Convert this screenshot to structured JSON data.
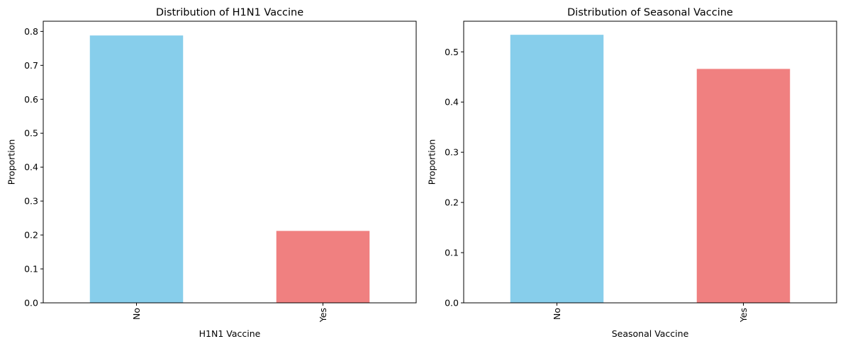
{
  "chart_data": [
    {
      "type": "bar",
      "title": "Distribution of H1N1 Vaccine",
      "xlabel": "H1N1 Vaccine",
      "ylabel": "Proportion",
      "categories": [
        "No",
        "Yes"
      ],
      "values": [
        0.788,
        0.212
      ],
      "colors": [
        "#87CEEB",
        "#F08080"
      ],
      "ylim": [
        0,
        0.83
      ],
      "yticks": [
        0.0,
        0.1,
        0.2,
        0.3,
        0.4,
        0.5,
        0.6,
        0.7,
        0.8
      ],
      "ytick_labels": [
        "0.0",
        "0.1",
        "0.2",
        "0.3",
        "0.4",
        "0.5",
        "0.6",
        "0.7",
        "0.8"
      ],
      "grid": false,
      "xtick_rotation": 90
    },
    {
      "type": "bar",
      "title": "Distribution of Seasonal Vaccine",
      "xlabel": "Seasonal Vaccine",
      "ylabel": "Proportion",
      "categories": [
        "No",
        "Yes"
      ],
      "values": [
        0.534,
        0.466
      ],
      "colors": [
        "#87CEEB",
        "#F08080"
      ],
      "ylim": [
        0,
        0.561
      ],
      "yticks": [
        0.0,
        0.1,
        0.2,
        0.3,
        0.4,
        0.5
      ],
      "ytick_labels": [
        "0.0",
        "0.1",
        "0.2",
        "0.3",
        "0.4",
        "0.5"
      ],
      "grid": false,
      "xtick_rotation": 90
    }
  ]
}
